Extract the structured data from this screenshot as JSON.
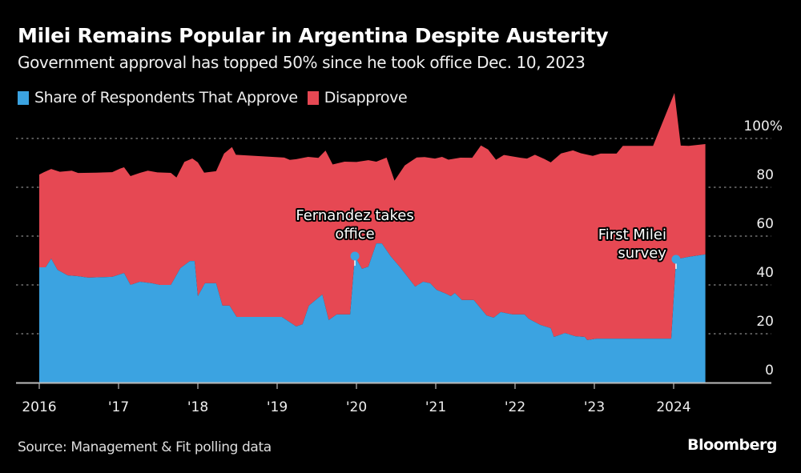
{
  "header": {
    "title": "Milei Remains Popular in Argentina Despite Austerity",
    "subtitle": "Government approval has topped 50% since he took office Dec. 10, 2023"
  },
  "legend": [
    {
      "label": "Share of Respondents That Approve",
      "color": "#3ba3e1"
    },
    {
      "label": "Disapprove",
      "color": "#e64853"
    }
  ],
  "footer": {
    "source": "Source: Management & Fit polling data",
    "brand": "Bloomberg"
  },
  "chart_data": {
    "type": "area",
    "stacked": true,
    "title": "Milei Remains Popular in Argentina Despite Austerity",
    "subtitle": "Government approval has topped 50% since he took office Dec. 10, 2023",
    "xlabel": "",
    "ylabel": "",
    "xlim": [
      2016.0,
      2024.95
    ],
    "ylim": [
      0,
      100
    ],
    "grid": true,
    "legend_position": "top-left",
    "y_axis_side": "right",
    "x_ticks": [
      {
        "value": 2016,
        "label": "2016"
      },
      {
        "value": 2017,
        "label": "'17"
      },
      {
        "value": 2018,
        "label": "'18"
      },
      {
        "value": 2019,
        "label": "'19"
      },
      {
        "value": 2020,
        "label": "'20"
      },
      {
        "value": 2021,
        "label": "'21"
      },
      {
        "value": 2022,
        "label": "'22"
      },
      {
        "value": 2023,
        "label": "'23"
      },
      {
        "value": 2024,
        "label": "2024"
      }
    ],
    "y_ticks": [
      {
        "value": 0,
        "label": "0"
      },
      {
        "value": 20,
        "label": "20"
      },
      {
        "value": 40,
        "label": "40"
      },
      {
        "value": 60,
        "label": "60"
      },
      {
        "value": 80,
        "label": "80"
      },
      {
        "value": 100,
        "label": "100%"
      }
    ],
    "series": [
      {
        "name": "Share of Respondents That Approve",
        "color": "#3ba3e1",
        "points": [
          [
            2016.0,
            47.2
          ],
          [
            2016.08,
            47.2
          ],
          [
            2016.15,
            50.8
          ],
          [
            2016.23,
            46.2
          ],
          [
            2016.36,
            43.9
          ],
          [
            2016.48,
            43.6
          ],
          [
            2016.62,
            43.0
          ],
          [
            2016.92,
            43.3
          ],
          [
            2017.07,
            44.9
          ],
          [
            2017.15,
            40.0
          ],
          [
            2017.27,
            41.3
          ],
          [
            2017.42,
            40.7
          ],
          [
            2017.52,
            40.0
          ],
          [
            2017.66,
            40.0
          ],
          [
            2017.78,
            46.9
          ],
          [
            2017.9,
            49.8
          ],
          [
            2017.96,
            49.8
          ],
          [
            2018.0,
            35.4
          ],
          [
            2018.09,
            40.7
          ],
          [
            2018.23,
            40.7
          ],
          [
            2018.31,
            31.5
          ],
          [
            2018.4,
            31.5
          ],
          [
            2018.49,
            26.9
          ],
          [
            2018.74,
            26.9
          ],
          [
            2019.06,
            26.9
          ],
          [
            2019.24,
            23.0
          ],
          [
            2019.32,
            23.9
          ],
          [
            2019.4,
            31.5
          ],
          [
            2019.57,
            36.1
          ],
          [
            2019.65,
            25.6
          ],
          [
            2019.75,
            27.9
          ],
          [
            2019.92,
            27.9
          ],
          [
            2019.98,
            51.8
          ],
          [
            2020.07,
            46.6
          ],
          [
            2020.15,
            47.5
          ],
          [
            2020.25,
            57.0
          ],
          [
            2020.32,
            57.0
          ],
          [
            2020.43,
            51.8
          ],
          [
            2020.56,
            46.9
          ],
          [
            2020.74,
            39.3
          ],
          [
            2020.84,
            41.3
          ],
          [
            2020.93,
            40.7
          ],
          [
            2021.01,
            38.0
          ],
          [
            2021.13,
            36.4
          ],
          [
            2021.19,
            35.4
          ],
          [
            2021.24,
            36.7
          ],
          [
            2021.33,
            33.8
          ],
          [
            2021.48,
            33.8
          ],
          [
            2021.64,
            27.5
          ],
          [
            2021.73,
            26.6
          ],
          [
            2021.82,
            28.9
          ],
          [
            2021.97,
            27.9
          ],
          [
            2022.12,
            27.9
          ],
          [
            2022.17,
            26.2
          ],
          [
            2022.32,
            23.6
          ],
          [
            2022.45,
            22.3
          ],
          [
            2022.49,
            18.7
          ],
          [
            2022.63,
            20.3
          ],
          [
            2022.76,
            19.0
          ],
          [
            2022.88,
            18.7
          ],
          [
            2022.91,
            17.4
          ],
          [
            2023.03,
            18.0
          ],
          [
            2023.38,
            18.0
          ],
          [
            2023.59,
            18.0
          ],
          [
            2023.97,
            18.0
          ],
          [
            2024.03,
            50.5
          ],
          [
            2024.19,
            51.5
          ],
          [
            2024.4,
            52.5
          ]
        ]
      },
      {
        "name": "Disapprove",
        "color": "#e64853",
        "points": [
          [
            2016.0,
            38.0
          ],
          [
            2016.06,
            39.0
          ],
          [
            2016.15,
            36.7
          ],
          [
            2016.26,
            40.7
          ],
          [
            2016.41,
            43.0
          ],
          [
            2016.49,
            42.3
          ],
          [
            2016.72,
            42.9
          ],
          [
            2016.92,
            42.9
          ],
          [
            2017.02,
            43.3
          ],
          [
            2017.07,
            43.3
          ],
          [
            2017.15,
            44.6
          ],
          [
            2017.27,
            44.6
          ],
          [
            2017.37,
            45.9
          ],
          [
            2017.49,
            45.9
          ],
          [
            2017.66,
            45.9
          ],
          [
            2017.73,
            40.0
          ],
          [
            2017.83,
            42.3
          ],
          [
            2017.93,
            42.0
          ],
          [
            2018.0,
            54.8
          ],
          [
            2018.08,
            45.9
          ],
          [
            2018.23,
            45.9
          ],
          [
            2018.33,
            62.3
          ],
          [
            2018.43,
            66.5
          ],
          [
            2018.48,
            65.9
          ],
          [
            2019.09,
            65.9
          ],
          [
            2019.16,
            66.5
          ],
          [
            2019.24,
            68.5
          ],
          [
            2019.39,
            61.9
          ],
          [
            2019.52,
            57.3
          ],
          [
            2019.61,
            64.2
          ],
          [
            2019.7,
            62.6
          ],
          [
            2019.85,
            62.6
          ],
          [
            2020.0,
            39.7
          ],
          [
            2020.15,
            43.6
          ],
          [
            2020.25,
            33.5
          ],
          [
            2020.38,
            38.0
          ],
          [
            2020.48,
            32.8
          ],
          [
            2020.61,
            44.2
          ],
          [
            2020.76,
            52.5
          ],
          [
            2020.86,
            51.2
          ],
          [
            2020.99,
            53.1
          ],
          [
            2021.08,
            55.4
          ],
          [
            2021.16,
            55.4
          ],
          [
            2021.31,
            57.7
          ],
          [
            2021.46,
            58.3
          ],
          [
            2021.57,
            66.9
          ],
          [
            2021.66,
            68.2
          ],
          [
            2021.76,
            63.9
          ],
          [
            2021.86,
            64.6
          ],
          [
            2022.07,
            64.2
          ],
          [
            2022.15,
            64.9
          ],
          [
            2022.25,
            68.5
          ],
          [
            2022.37,
            68.5
          ],
          [
            2022.45,
            67.9
          ],
          [
            2022.58,
            74.1
          ],
          [
            2022.73,
            75.8
          ],
          [
            2022.83,
            75.1
          ],
          [
            2022.98,
            75.1
          ],
          [
            2023.08,
            75.8
          ],
          [
            2023.28,
            75.8
          ],
          [
            2023.36,
            79.0
          ],
          [
            2023.74,
            79.0
          ],
          [
            2024.01,
            79.0
          ],
          [
            2024.09,
            46.2
          ],
          [
            2024.19,
            45.5
          ],
          [
            2024.4,
            45.2
          ]
        ]
      }
    ],
    "annotations": [
      {
        "text": [
          "Fernandez takes",
          "office"
        ],
        "x": 2019.98,
        "y": 51.8
      },
      {
        "text": [
          "First Milei",
          "survey"
        ],
        "x": 2024.03,
        "y": 50.5
      }
    ]
  }
}
